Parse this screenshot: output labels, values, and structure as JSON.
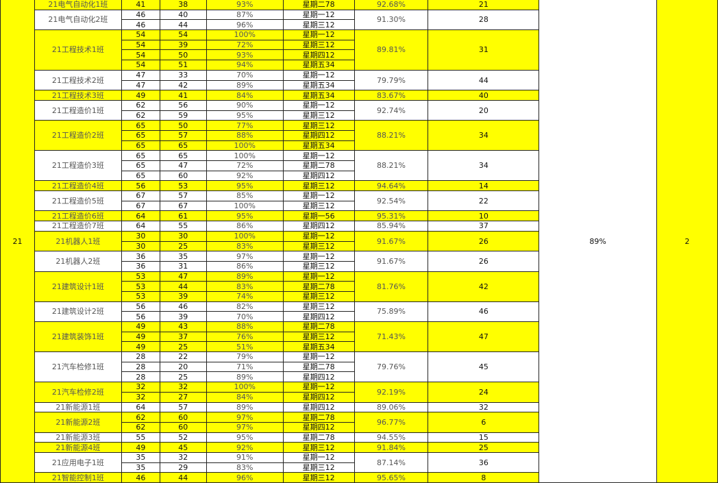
{
  "grade": "21",
  "overall_rate": "89%",
  "overall_rank": "2",
  "colors": {
    "highlight": "#ffff00",
    "plain": "#ffffff",
    "grid": "#222222"
  },
  "groups": [
    {
      "name": "21电气自动化1班",
      "hl": true,
      "rate": "92.68%",
      "rank": "21",
      "rows": [
        [
          "41",
          "38",
          "93%",
          "星期二78"
        ]
      ]
    },
    {
      "name": "21电气自动化2班",
      "hl": false,
      "rate": "91.30%",
      "rank": "28",
      "rows": [
        [
          "46",
          "40",
          "87%",
          "星期一12"
        ],
        [
          "46",
          "44",
          "96%",
          "星期三12"
        ]
      ]
    },
    {
      "name": "21工程技术1班",
      "hl": true,
      "rate": "89.81%",
      "rank": "31",
      "rows": [
        [
          "54",
          "54",
          "100%",
          "星期一12"
        ],
        [
          "54",
          "39",
          "72%",
          "星期三12"
        ],
        [
          "54",
          "50",
          "93%",
          "星期四12"
        ],
        [
          "54",
          "51",
          "94%",
          "星期五34"
        ]
      ]
    },
    {
      "name": "21工程技术2班",
      "hl": false,
      "rate": "79.79%",
      "rank": "44",
      "rows": [
        [
          "47",
          "33",
          "70%",
          "星期一12"
        ],
        [
          "47",
          "42",
          "89%",
          "星期五34"
        ]
      ]
    },
    {
      "name": "21工程技术3班",
      "hl": true,
      "rate": "83.67%",
      "rank": "40",
      "rows": [
        [
          "49",
          "41",
          "84%",
          "星期五34"
        ]
      ]
    },
    {
      "name": "21工程造价1班",
      "hl": false,
      "rate": "92.74%",
      "rank": "20",
      "rows": [
        [
          "62",
          "56",
          "90%",
          "星期一12"
        ],
        [
          "62",
          "59",
          "95%",
          "星期三12"
        ]
      ]
    },
    {
      "name": "21工程造价2班",
      "hl": true,
      "rate": "88.21%",
      "rank": "34",
      "rows": [
        [
          "65",
          "50",
          "77%",
          "星期三12"
        ],
        [
          "65",
          "57",
          "88%",
          "星期四12"
        ],
        [
          "65",
          "65",
          "100%",
          "星期五34"
        ]
      ]
    },
    {
      "name": "21工程造价3班",
      "hl": false,
      "rate": "88.21%",
      "rank": "34",
      "rows": [
        [
          "65",
          "65",
          "100%",
          "星期一12"
        ],
        [
          "65",
          "47",
          "72%",
          "星期二78"
        ],
        [
          "65",
          "60",
          "92%",
          "星期四12"
        ]
      ]
    },
    {
      "name": "21工程造价4班",
      "hl": true,
      "rate": "94.64%",
      "rank": "14",
      "rows": [
        [
          "56",
          "53",
          "95%",
          "星期三12"
        ]
      ]
    },
    {
      "name": "21工程造价5班",
      "hl": false,
      "rate": "92.54%",
      "rank": "22",
      "rows": [
        [
          "67",
          "57",
          "85%",
          "星期一12"
        ],
        [
          "67",
          "67",
          "100%",
          "星期三12"
        ]
      ]
    },
    {
      "name": "21工程造价6班",
      "hl": true,
      "rate": "95.31%",
      "rank": "10",
      "rows": [
        [
          "64",
          "61",
          "95%",
          "星期一56"
        ]
      ]
    },
    {
      "name": "21工程造价7班",
      "hl": false,
      "rate": "85.94%",
      "rank": "37",
      "rows": [
        [
          "64",
          "55",
          "86%",
          "星期四12"
        ]
      ]
    },
    {
      "name": "21机器人1班",
      "hl": true,
      "rate": "91.67%",
      "rank": "26",
      "rows": [
        [
          "30",
          "30",
          "100%",
          "星期一12"
        ],
        [
          "30",
          "25",
          "83%",
          "星期三12"
        ]
      ]
    },
    {
      "name": "21机器人2班",
      "hl": false,
      "rate": "91.67%",
      "rank": "26",
      "rows": [
        [
          "36",
          "35",
          "97%",
          "星期一12"
        ],
        [
          "36",
          "31",
          "86%",
          "星期三12"
        ]
      ]
    },
    {
      "name": "21建筑设计1班",
      "hl": true,
      "rate": "81.76%",
      "rank": "42",
      "rows": [
        [
          "53",
          "47",
          "89%",
          "星期一12"
        ],
        [
          "53",
          "44",
          "83%",
          "星期二78"
        ],
        [
          "53",
          "39",
          "74%",
          "星期三12"
        ]
      ]
    },
    {
      "name": "21建筑设计2班",
      "hl": false,
      "rate": "75.89%",
      "rank": "46",
      "rows": [
        [
          "56",
          "46",
          "82%",
          "星期三12"
        ],
        [
          "56",
          "39",
          "70%",
          "星期四12"
        ]
      ]
    },
    {
      "name": "21建筑装饰1班",
      "hl": true,
      "rate": "71.43%",
      "rank": "47",
      "rows": [
        [
          "49",
          "43",
          "88%",
          "星期二78"
        ],
        [
          "49",
          "37",
          "76%",
          "星期三12"
        ],
        [
          "49",
          "25",
          "51%",
          "星期五34"
        ]
      ]
    },
    {
      "name": "21汽车检修1班",
      "hl": false,
      "rate": "79.76%",
      "rank": "45",
      "rows": [
        [
          "28",
          "22",
          "79%",
          "星期一12"
        ],
        [
          "28",
          "20",
          "71%",
          "星期二78"
        ],
        [
          "28",
          "25",
          "89%",
          "星期四12"
        ]
      ]
    },
    {
      "name": "21汽车检修2班",
      "hl": true,
      "rate": "92.19%",
      "rank": "24",
      "rows": [
        [
          "32",
          "32",
          "100%",
          "星期一12"
        ],
        [
          "32",
          "27",
          "84%",
          "星期四12"
        ]
      ]
    },
    {
      "name": "21新能源1班",
      "hl": false,
      "rate": "89.06%",
      "rank": "32",
      "rows": [
        [
          "64",
          "57",
          "89%",
          "星期四12"
        ]
      ]
    },
    {
      "name": "21新能源2班",
      "hl": true,
      "rate": "96.77%",
      "rank": "6",
      "rows": [
        [
          "62",
          "60",
          "97%",
          "星期二78"
        ],
        [
          "62",
          "60",
          "97%",
          "星期四12"
        ]
      ]
    },
    {
      "name": "21新能源3班",
      "hl": false,
      "rate": "94.55%",
      "rank": "15",
      "rows": [
        [
          "55",
          "52",
          "95%",
          "星期二78"
        ]
      ]
    },
    {
      "name": "21新能源4班",
      "hl": true,
      "rate": "91.84%",
      "rank": "25",
      "rows": [
        [
          "49",
          "45",
          "92%",
          "星期三12"
        ]
      ]
    },
    {
      "name": "21应用电子1班",
      "hl": false,
      "rate": "87.14%",
      "rank": "36",
      "rows": [
        [
          "35",
          "32",
          "91%",
          "星期一12"
        ],
        [
          "35",
          "29",
          "83%",
          "星期三12"
        ]
      ]
    },
    {
      "name": "21智能控制1班",
      "hl": true,
      "rate": "95.65%",
      "rank": "8",
      "rows": [
        [
          "46",
          "44",
          "96%",
          "星期三12"
        ]
      ]
    }
  ]
}
